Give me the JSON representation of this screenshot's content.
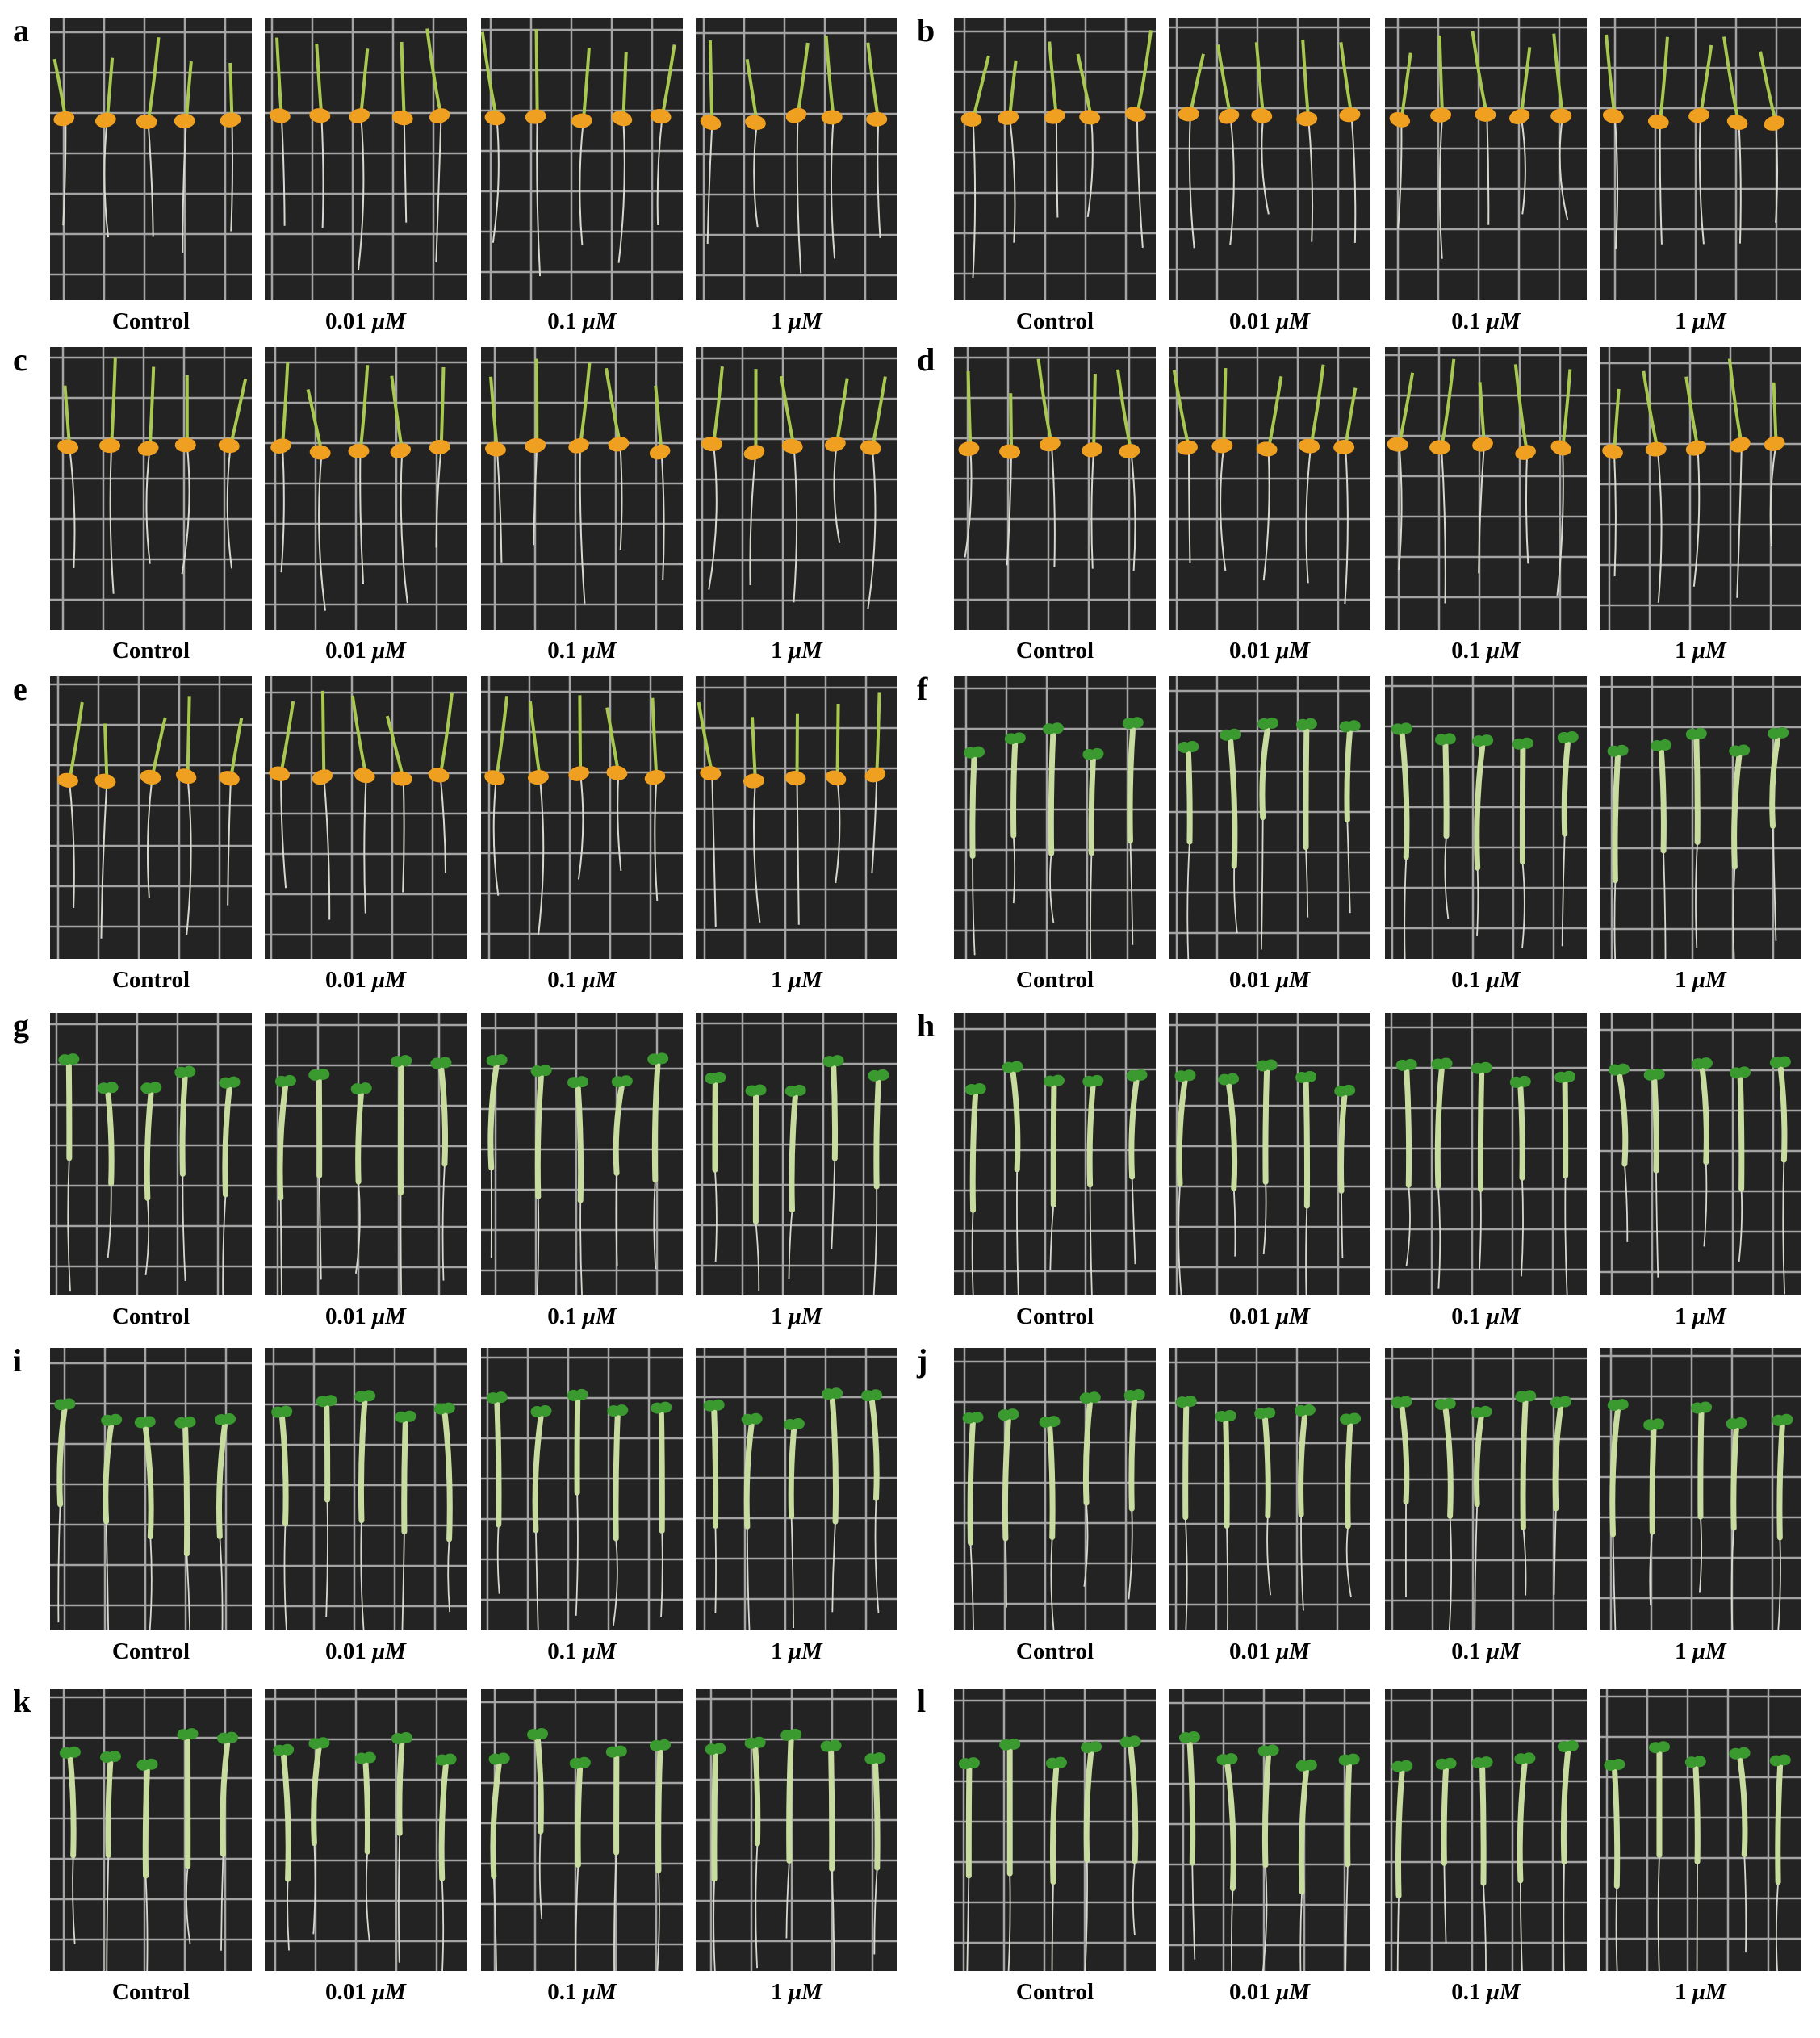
{
  "figure": {
    "panels": [
      {
        "letter": "a",
        "kind": "rice"
      },
      {
        "letter": "b",
        "kind": "rice"
      },
      {
        "letter": "c",
        "kind": "rice"
      },
      {
        "letter": "d",
        "kind": "rice"
      },
      {
        "letter": "e",
        "kind": "rice"
      },
      {
        "letter": "f",
        "kind": "sprout"
      },
      {
        "letter": "g",
        "kind": "sprout"
      },
      {
        "letter": "h",
        "kind": "sprout"
      },
      {
        "letter": "i",
        "kind": "sprout"
      },
      {
        "letter": "j",
        "kind": "sprout"
      },
      {
        "letter": "k",
        "kind": "sprout"
      },
      {
        "letter": "l",
        "kind": "sprout"
      }
    ],
    "treatments": [
      {
        "value": "Control",
        "unit": ""
      },
      {
        "value": "0.01",
        "unit": "μM"
      },
      {
        "value": "0.1",
        "unit": "μM"
      },
      {
        "value": "1",
        "unit": "μM"
      }
    ],
    "colors": {
      "background": "#232323",
      "grid": "#cfcfcf",
      "rice_seed": "#f0a020",
      "rice_shoot": "#a8c850",
      "sprout_leaf": "#3a9a30",
      "sprout_stem": "#c8dca0",
      "root": "#d8d8d0"
    }
  }
}
